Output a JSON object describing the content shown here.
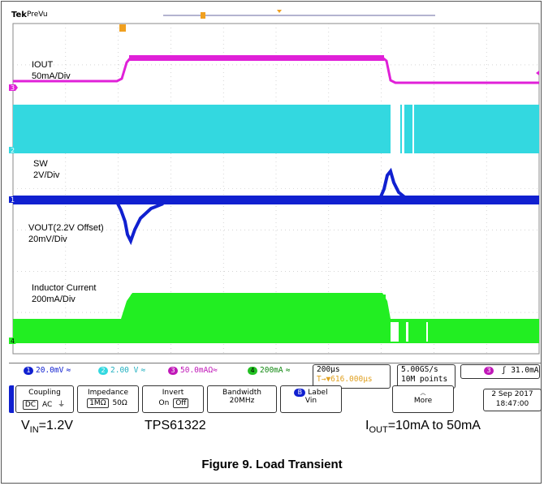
{
  "scope": {
    "brand": "Tek",
    "mode": "PreVu"
  },
  "channels": [
    {
      "id": "IOUT",
      "label_line1": "IOUT",
      "label_line2": "50mA/Div",
      "marker": "3",
      "color": "#e020d8"
    },
    {
      "id": "SW",
      "label_line1": "SW",
      "label_line2": "2V/Div",
      "marker": "2",
      "color": "#33d8e0"
    },
    {
      "id": "VOUT",
      "label_line1": "VOUT(2.2V Offset)",
      "label_line2": "20mV/Div",
      "marker": "1",
      "color": "#1020d0"
    },
    {
      "id": "IL",
      "label_line1": "Inductor Current",
      "label_line2": "200mA/Div",
      "marker": "4",
      "color": "#22ee22"
    }
  ],
  "status": {
    "ch1": {
      "num": "1",
      "value": "20.0mV",
      "suffix": "≈"
    },
    "ch2": {
      "num": "2",
      "value": "2.00 V",
      "suffix": "≈"
    },
    "ch3": {
      "num": "3",
      "value": "50.0mAΩ≈"
    },
    "ch4": {
      "num": "4",
      "value": "200mA",
      "suffix": "≈"
    },
    "timebase": "200µs",
    "position": "T→▼616.000µs",
    "sample_rate": "5.00GS/s",
    "record_length": "10M points",
    "trigger_ch": "3",
    "trigger_slope": "ʃ",
    "trigger_level": "31.0mA"
  },
  "menu": {
    "coupling": {
      "title": "Coupling",
      "options": [
        "DC",
        "AC",
        "⏚"
      ]
    },
    "impedance": {
      "title": "Impedance",
      "options": [
        "1MΩ",
        "50Ω"
      ]
    },
    "invert": {
      "title": "Invert",
      "options": [
        "On",
        "Off"
      ]
    },
    "bandwidth": {
      "title": "Bandwidth",
      "value": "20MHz"
    },
    "label": {
      "title": "Label",
      "value": "Vin",
      "badge": "B"
    },
    "more": "More",
    "date": "2 Sep  2017",
    "time": "18:47:00"
  },
  "captions": {
    "vin_main": "V",
    "vin_sub": "IN",
    "vin_value": "=1.2V",
    "part": "TPS61322",
    "iout_main": "I",
    "iout_sub": "OUT",
    "iout_value": "=10mA to 50mA"
  },
  "figure_title": "Figure 9. Load Transient"
}
